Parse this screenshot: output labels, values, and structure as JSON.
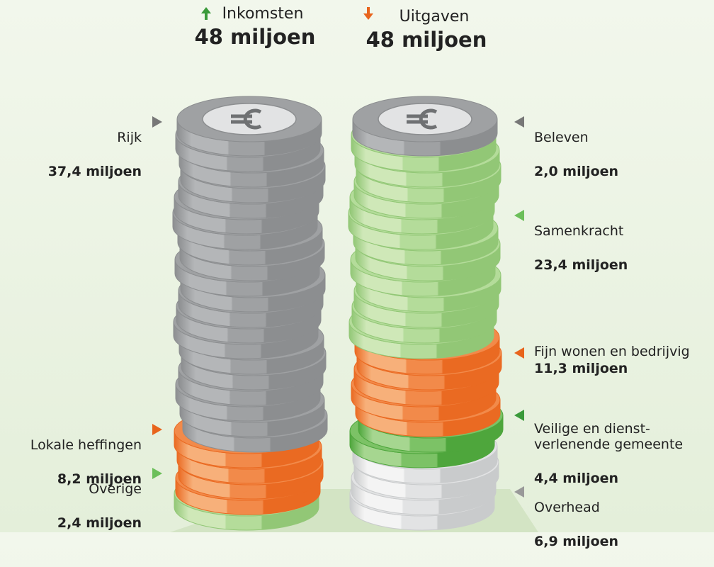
{
  "header": {
    "income": {
      "label": "Inkomsten",
      "amount": "48 miljoen"
    },
    "expenses": {
      "label": "Uitgaven",
      "amount": "48 miljoen"
    }
  },
  "income_items": [
    {
      "name": "Rijk",
      "amount": "37,4 miljoen"
    },
    {
      "name": "Lokale heffingen",
      "amount": "8,2 miljoen"
    },
    {
      "name": "Overige",
      "amount": "2,4 miljoen"
    }
  ],
  "expense_items": [
    {
      "name": "Beleven",
      "amount": "2,0 miljoen"
    },
    {
      "name": "Samenkracht",
      "amount": "23,4 miljoen"
    },
    {
      "name": "Fijn wonen en bedrijvig",
      "amount": "11,3 miljoen"
    },
    {
      "name": "Veilige en dienst-\nverlenende gemeente",
      "amount": "4,4 miljoen"
    },
    {
      "name": "Overhead",
      "amount": "6,9 miljoen"
    }
  ]
}
